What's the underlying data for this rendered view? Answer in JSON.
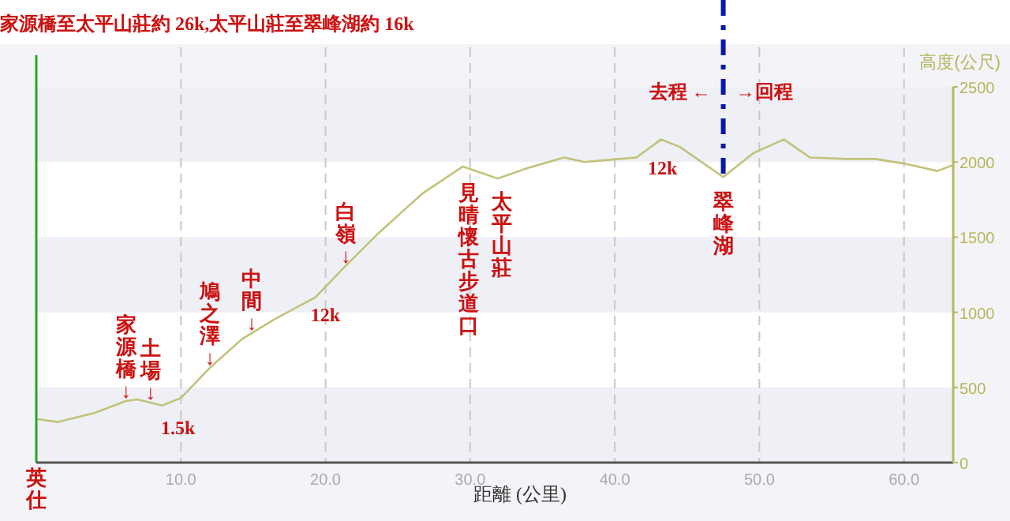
{
  "chart_data": {
    "type": "line",
    "title": "家源橋至太平山莊約 26k,太平山莊至翠峰湖約 16k",
    "xlabel": "距離 (公里)",
    "ylabel": "高度(公尺)",
    "x": [
      0,
      1.5,
      4,
      6.2,
      7,
      8.7,
      10,
      12,
      14.2,
      16.4,
      19.3,
      21.2,
      23.7,
      26.7,
      29.5,
      31.9,
      34,
      36.5,
      37.9,
      41.5,
      43.2,
      44.5,
      47.5,
      49.6,
      51.7,
      53.5,
      56.1,
      58,
      60,
      62.3,
      63.4
    ],
    "series": [
      {
        "color": "#c2c27a",
        "values": [
          290,
          270,
          330,
          410,
          420,
          380,
          430,
          630,
          820,
          950,
          1100,
          1290,
          1530,
          1790,
          1970,
          1890,
          1960,
          2030,
          2000,
          2030,
          2150,
          2100,
          1900,
          2060,
          2150,
          2030,
          2020,
          2020,
          1990,
          1940,
          1980
        ]
      }
    ],
    "xlim": [
      0,
      63.4
    ],
    "xticks": [
      {
        "value": 10,
        "label": "10.0"
      },
      {
        "value": 20,
        "label": "20.0"
      },
      {
        "value": 30,
        "label": "30.0"
      },
      {
        "value": 40,
        "label": "40.0"
      },
      {
        "value": 50,
        "label": "50.0"
      },
      {
        "value": 60,
        "label": "60.0"
      }
    ],
    "ylim": [
      0,
      2500
    ],
    "yticks": [
      0,
      500,
      1000,
      1500,
      2000,
      2500
    ],
    "grid": "x",
    "ref_lines": [
      {
        "axis": "x",
        "value": 47.5,
        "color": "#0a1aa8",
        "line_style": "dashdot"
      }
    ],
    "annotations": [
      "去程 ←",
      "→回程",
      "英仕",
      {
        "text": "家源橋↓",
        "x": 6.2,
        "y": 410
      },
      {
        "text": "土場↓",
        "x": 7.9,
        "y": 400
      },
      {
        "text": "鳩之澤↓",
        "x": 12,
        "y": 630
      },
      {
        "text": "中間↓",
        "x": 14.9,
        "y": 860
      },
      {
        "text": "白嶺↓",
        "x": 21.4,
        "y": 1310
      },
      {
        "text": "見晴懷古步道口",
        "x": 29.9,
        "y": 1960
      },
      {
        "text": "太平山莊",
        "x": 32.2,
        "y": 1900
      },
      {
        "text": "翠峰湖",
        "x": 47.5,
        "y": 1900
      },
      {
        "text": "1.5k",
        "x": 9.8,
        "y": 420
      },
      {
        "text": "12k",
        "x": 20,
        "y": 1170
      },
      {
        "text": "12k",
        "x": 43.3,
        "y": 2150
      }
    ]
  }
}
